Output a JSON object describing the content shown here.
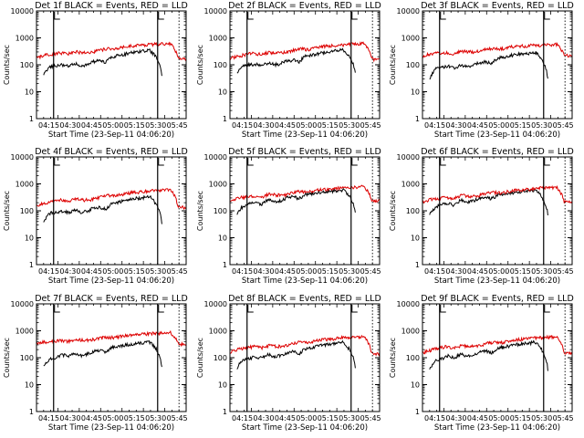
{
  "figure": {
    "background": "#ffffff",
    "events_color": "#000000",
    "lld_color": "#dd0000"
  },
  "chart_data": [
    {
      "type": "line",
      "detector": "1",
      "title": "Det 1f BLACK = Events, RED = LLD",
      "ylabel": "Counts/sec",
      "xlabel": "Start Time (23-Sep-11 04:06:20)",
      "xticks": [
        "04:15",
        "04:30",
        "04:45",
        "05:00",
        "05:15",
        "05:30",
        "05:45"
      ],
      "yticks": [
        "1",
        "10",
        "100",
        "1000",
        "10000"
      ],
      "ylim": [
        1,
        10000
      ],
      "x_range_min": [
        0,
        105
      ],
      "events_gap_min": [
        5,
        88
      ],
      "markers_min": [
        [
          12,
          "L"
        ],
        [
          85,
          "L"
        ],
        [
          100,
          "dotted"
        ]
      ],
      "series": [
        {
          "name": "Events",
          "color": "#000000",
          "values": [
            40,
            85,
            95,
            100,
            90,
            110,
            95,
            100,
            130,
            140,
            120,
            200,
            220,
            250,
            280,
            300,
            320,
            350,
            200,
            40
          ]
        },
        {
          "name": "LLD",
          "color": "#dd0000",
          "values": [
            180,
            220,
            250,
            280,
            250,
            300,
            280,
            290,
            350,
            400,
            380,
            450,
            500,
            520,
            560,
            580,
            600,
            620,
            170,
            160
          ]
        }
      ]
    },
    {
      "type": "line",
      "detector": "2",
      "title": "Det 2f BLACK = Events, RED = LLD",
      "ylabel": "Counts/sec",
      "xlabel": "Start Time (23-Sep-11 04:06:20)",
      "xticks": [
        "04:15",
        "04:30",
        "04:45",
        "05:00",
        "05:15",
        "05:30",
        "05:45"
      ],
      "yticks": [
        "1",
        "10",
        "100",
        "1000",
        "10000"
      ],
      "ylim": [
        1,
        10000
      ],
      "x_range_min": [
        0,
        105
      ],
      "events_gap_min": [
        5,
        88
      ],
      "markers_min": [
        [
          12,
          "L"
        ],
        [
          85,
          "L"
        ],
        [
          100,
          "dotted"
        ]
      ],
      "series": [
        {
          "name": "Events",
          "color": "#000000",
          "values": [
            45,
            90,
            100,
            105,
            95,
            120,
            100,
            110,
            140,
            150,
            130,
            210,
            230,
            260,
            290,
            310,
            330,
            360,
            210,
            45
          ]
        },
        {
          "name": "LLD",
          "color": "#dd0000",
          "values": [
            170,
            210,
            240,
            270,
            240,
            290,
            270,
            280,
            340,
            390,
            370,
            440,
            490,
            510,
            550,
            570,
            590,
            610,
            165,
            150
          ]
        }
      ]
    },
    {
      "type": "line",
      "detector": "3",
      "title": "Det 3f BLACK = Events, RED = LLD",
      "ylabel": "Counts/sec",
      "xlabel": "Start Time (23-Sep-11 04:06:20)",
      "xticks": [
        "04:15",
        "04:30",
        "04:45",
        "05:00",
        "05:15",
        "05:30",
        "05:45"
      ],
      "yticks": [
        "1",
        "10",
        "100",
        "1000",
        "10000"
      ],
      "ylim": [
        1,
        10000
      ],
      "x_range_min": [
        0,
        105
      ],
      "events_gap_min": [
        5,
        88
      ],
      "markers_min": [
        [
          12,
          "L"
        ],
        [
          85,
          "L"
        ],
        [
          100,
          "dotted"
        ]
      ],
      "series": [
        {
          "name": "Events",
          "color": "#000000",
          "values": [
            30,
            70,
            80,
            90,
            75,
            100,
            85,
            95,
            120,
            130,
            110,
            180,
            190,
            220,
            240,
            260,
            270,
            290,
            150,
            30
          ]
        },
        {
          "name": "LLD",
          "color": "#dd0000",
          "values": [
            220,
            250,
            270,
            290,
            260,
            320,
            300,
            310,
            370,
            410,
            390,
            460,
            480,
            500,
            520,
            540,
            560,
            580,
            220,
            210
          ]
        }
      ]
    },
    {
      "type": "line",
      "detector": "4",
      "title": "Det 4f BLACK = Events, RED = LLD",
      "ylabel": "Counts/sec",
      "xlabel": "Start Time (23-Sep-11 04:06:20)",
      "xticks": [
        "04:15",
        "04:30",
        "04:45",
        "05:00",
        "05:15",
        "05:30",
        "05:45"
      ],
      "yticks": [
        "1",
        "10",
        "100",
        "1000",
        "10000"
      ],
      "ylim": [
        1,
        10000
      ],
      "x_range_min": [
        0,
        105
      ],
      "events_gap_min": [
        5,
        88
      ],
      "markers_min": [
        [
          12,
          "L"
        ],
        [
          85,
          "L"
        ],
        [
          100,
          "dotted"
        ]
      ],
      "series": [
        {
          "name": "Events",
          "color": "#000000",
          "values": [
            35,
            80,
            90,
            95,
            85,
            105,
            90,
            95,
            125,
            135,
            115,
            190,
            210,
            240,
            270,
            290,
            310,
            340,
            190,
            35
          ]
        },
        {
          "name": "LLD",
          "color": "#dd0000",
          "values": [
            150,
            190,
            220,
            250,
            220,
            270,
            250,
            260,
            320,
            370,
            350,
            420,
            470,
            490,
            530,
            550,
            570,
            590,
            140,
            130
          ]
        }
      ]
    },
    {
      "type": "line",
      "detector": "5",
      "title": "Det 5f BLACK = Events, RED = LLD",
      "ylabel": "Counts/sec",
      "xlabel": "Start Time (23-Sep-11 04:06:20)",
      "xticks": [
        "04:15",
        "04:30",
        "04:45",
        "05:00",
        "05:15",
        "05:30",
        "05:45"
      ],
      "yticks": [
        "1",
        "10",
        "100",
        "1000",
        "10000"
      ],
      "ylim": [
        1,
        10000
      ],
      "x_range_min": [
        0,
        105
      ],
      "events_gap_min": [
        5,
        88
      ],
      "markers_min": [
        [
          12,
          "L"
        ],
        [
          85,
          "L"
        ],
        [
          100,
          "dotted"
        ]
      ],
      "series": [
        {
          "name": "Events",
          "color": "#000000",
          "values": [
            80,
            150,
            180,
            200,
            170,
            260,
            220,
            240,
            300,
            330,
            290,
            400,
            420,
            460,
            500,
            540,
            560,
            600,
            350,
            80
          ]
        },
        {
          "name": "LLD",
          "color": "#dd0000",
          "values": [
            240,
            300,
            330,
            360,
            320,
            420,
            380,
            400,
            480,
            530,
            500,
            580,
            620,
            650,
            700,
            740,
            760,
            800,
            250,
            230
          ]
        }
      ]
    },
    {
      "type": "line",
      "detector": "6",
      "title": "Det 6f BLACK = Events, RED = LLD",
      "ylabel": "Counts/sec",
      "xlabel": "Start Time (23-Sep-11 04:06:20)",
      "xticks": [
        "04:15",
        "04:30",
        "04:45",
        "05:00",
        "05:15",
        "05:30",
        "05:45"
      ],
      "yticks": [
        "1",
        "10",
        "100",
        "1000",
        "10000"
      ],
      "ylim": [
        1,
        10000
      ],
      "x_range_min": [
        0,
        105
      ],
      "events_gap_min": [
        5,
        88
      ],
      "markers_min": [
        [
          12,
          "L"
        ],
        [
          85,
          "L"
        ],
        [
          100,
          "dotted"
        ]
      ],
      "series": [
        {
          "name": "Events",
          "color": "#000000",
          "values": [
            70,
            140,
            170,
            190,
            160,
            250,
            210,
            230,
            290,
            320,
            280,
            390,
            410,
            450,
            490,
            530,
            550,
            590,
            330,
            70
          ]
        },
        {
          "name": "LLD",
          "color": "#dd0000",
          "values": [
            200,
            260,
            290,
            320,
            280,
            380,
            340,
            360,
            440,
            490,
            460,
            540,
            580,
            610,
            660,
            700,
            720,
            760,
            220,
            200
          ]
        }
      ]
    },
    {
      "type": "line",
      "detector": "7",
      "title": "Det 7f BLACK = Events, RED = LLD",
      "ylabel": "Counts/sec",
      "xlabel": "Start Time (23-Sep-11 04:06:20)",
      "xticks": [
        "04:15",
        "04:30",
        "04:45",
        "05:00",
        "05:15",
        "05:30",
        "05:45"
      ],
      "yticks": [
        "1",
        "10",
        "100",
        "1000",
        "10000"
      ],
      "ylim": [
        1,
        10000
      ],
      "x_range_min": [
        0,
        105
      ],
      "events_gap_min": [
        5,
        88
      ],
      "markers_min": [
        [
          12,
          "L"
        ],
        [
          85,
          "L"
        ],
        [
          100,
          "dotted"
        ]
      ],
      "series": [
        {
          "name": "Events",
          "color": "#000000",
          "values": [
            45,
            90,
            100,
            130,
            110,
            150,
            120,
            140,
            170,
            190,
            160,
            240,
            260,
            290,
            320,
            340,
            360,
            390,
            220,
            40
          ]
        },
        {
          "name": "LLD",
          "color": "#dd0000",
          "values": [
            340,
            380,
            400,
            430,
            400,
            470,
            440,
            460,
            520,
            580,
            550,
            640,
            680,
            720,
            760,
            800,
            830,
            860,
            330,
            300
          ]
        }
      ]
    },
    {
      "type": "line",
      "detector": "8",
      "title": "Det 8f BLACK = Events, RED = LLD",
      "ylabel": "Counts/sec",
      "xlabel": "Start Time (23-Sep-11 04:06:20)",
      "xticks": [
        "04:15",
        "04:30",
        "04:45",
        "05:00",
        "05:15",
        "05:30",
        "05:45"
      ],
      "yticks": [
        "1",
        "10",
        "100",
        "1000",
        "10000"
      ],
      "ylim": [
        1,
        10000
      ],
      "x_range_min": [
        0,
        105
      ],
      "events_gap_min": [
        5,
        88
      ],
      "markers_min": [
        [
          12,
          "L"
        ],
        [
          85,
          "L"
        ],
        [
          100,
          "dotted"
        ]
      ],
      "series": [
        {
          "name": "Events",
          "color": "#000000",
          "values": [
            40,
            85,
            95,
            110,
            95,
            130,
            110,
            120,
            150,
            170,
            140,
            220,
            240,
            270,
            300,
            320,
            340,
            370,
            210,
            40
          ]
        },
        {
          "name": "LLD",
          "color": "#dd0000",
          "values": [
            160,
            200,
            230,
            260,
            230,
            280,
            260,
            270,
            330,
            380,
            360,
            430,
            480,
            500,
            540,
            560,
            580,
            600,
            150,
            140
          ]
        }
      ]
    },
    {
      "type": "line",
      "detector": "9",
      "title": "Det 9f BLACK = Events, RED = LLD",
      "ylabel": "Counts/sec",
      "xlabel": "Start Time (23-Sep-11 04:06:20)",
      "xticks": [
        "04:15",
        "04:30",
        "04:45",
        "05:00",
        "05:15",
        "05:30",
        "05:45"
      ],
      "yticks": [
        "1",
        "10",
        "100",
        "1000",
        "10000"
      ],
      "ylim": [
        1,
        10000
      ],
      "x_range_min": [
        0,
        105
      ],
      "events_gap_min": [
        5,
        88
      ],
      "markers_min": [
        [
          12,
          "L"
        ],
        [
          85,
          "L"
        ],
        [
          100,
          "dotted"
        ]
      ],
      "series": [
        {
          "name": "Events",
          "color": "#000000",
          "values": [
            35,
            80,
            90,
            120,
            100,
            140,
            115,
            125,
            160,
            180,
            150,
            230,
            250,
            280,
            310,
            330,
            350,
            380,
            200,
            35
          ]
        },
        {
          "name": "LLD",
          "color": "#dd0000",
          "values": [
            150,
            190,
            220,
            260,
            230,
            290,
            260,
            270,
            330,
            380,
            360,
            430,
            470,
            500,
            540,
            560,
            580,
            600,
            150,
            140
          ]
        }
      ]
    }
  ]
}
